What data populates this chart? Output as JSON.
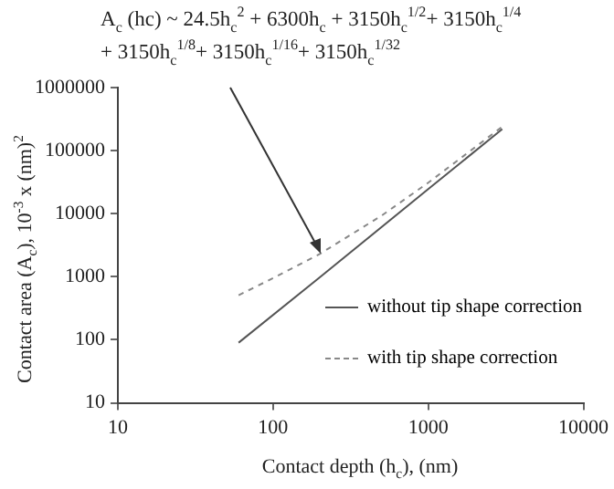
{
  "chart_data": {
    "type": "line",
    "xlabel": "Contact depth (h$_{c}$), (nm)",
    "ylabel": "Contact area (A$_{c}$), 10$^{-3}$ x (nm)$^{2}$",
    "log": "xy",
    "xlim": [
      10,
      10000
    ],
    "xticks": [
      10,
      100,
      1000,
      10000
    ],
    "ylim": [
      10,
      1000000
    ],
    "yticks": [
      10,
      100,
      1000,
      10000,
      100000,
      1000000
    ],
    "grid": false,
    "legend": "bottom right",
    "marker": "none",
    "series": [
      {
        "name": "without tip shape correction",
        "color": "#555555",
        "line_style": "solid",
        "x": [
          60,
          200,
          1000,
          3000
        ],
        "values": [
          90,
          980,
          24500,
          220000
        ]
      },
      {
        "name": "with tip shape correction",
        "color": "#888888",
        "line_style": "dashed",
        "x": [
          60,
          100,
          200,
          500,
          1000,
          3000
        ],
        "values": [
          510,
          950,
          2300,
          9300,
          31000,
          240000
        ]
      }
    ],
    "annotations": [
      "A$_{c}$ (hc) ~ 24.5h$_{c}$$^{2}$ + 6300h$_{c}$ + 3150h$_{c}$$^{1/2}$+ 3150h$_{c}$$^{1/4}$ + 3150h$_{c}$$^{1/8}$+ 3150h$_{c}$$^{1/16}$+ 3150h$_{c}$$^{1/32}$"
    ]
  }
}
